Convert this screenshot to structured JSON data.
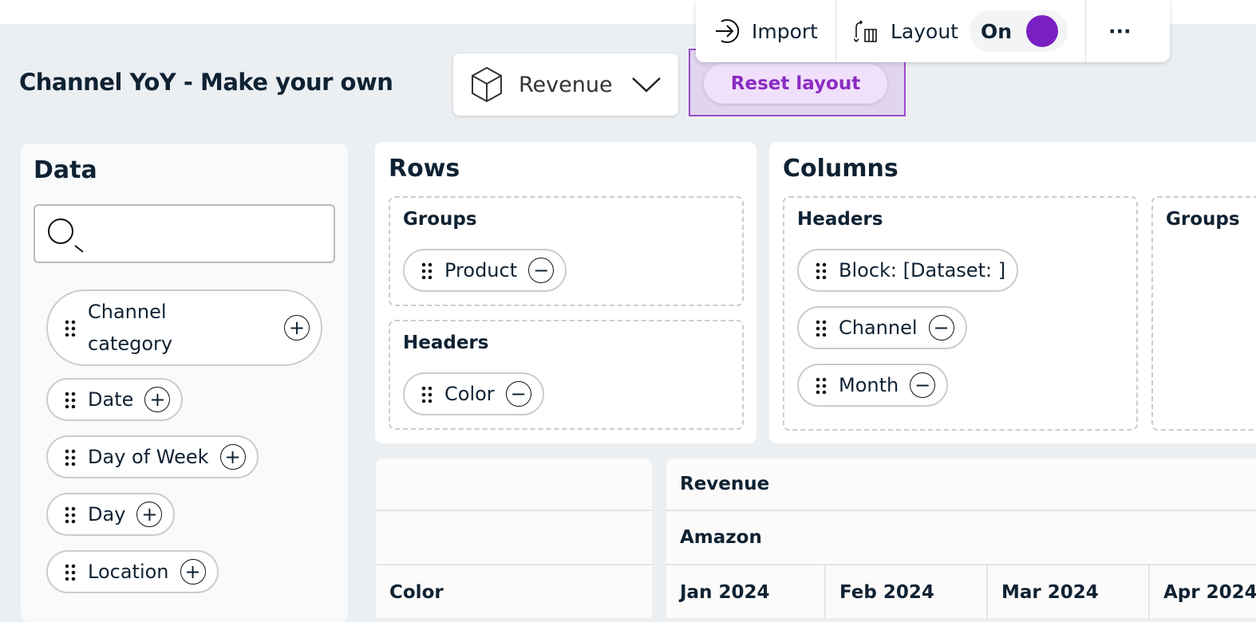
{
  "page_title": "Channel YoY - Make your own",
  "measure_dropdown": {
    "value": "Revenue",
    "icon": "cube-icon"
  },
  "reset_layout": "Reset layout",
  "toolbar": {
    "import": "Import",
    "layout": "Layout",
    "toggle": "On",
    "more": "···",
    "accent": "#7a1fc2"
  },
  "data_panel": {
    "title": "Data",
    "search_placeholder": "",
    "fields": [
      "Channel category",
      "Date",
      "Day of Week",
      "Day",
      "Location"
    ]
  },
  "rows": {
    "title": "Rows",
    "groups_label": "Groups",
    "groups": [
      "Product"
    ],
    "headers_label": "Headers",
    "headers": [
      "Color"
    ]
  },
  "columns": {
    "title": "Columns",
    "headers_label": "Headers",
    "headers": [
      "Block: [Dataset: ]",
      "Channel",
      "Month"
    ],
    "groups_label": "Groups"
  },
  "table": {
    "row_header": "Color",
    "measure": "Revenue",
    "channel": "Amazon",
    "months": [
      "Jan 2024",
      "Feb 2024",
      "Mar 2024",
      "Apr 2024"
    ]
  }
}
